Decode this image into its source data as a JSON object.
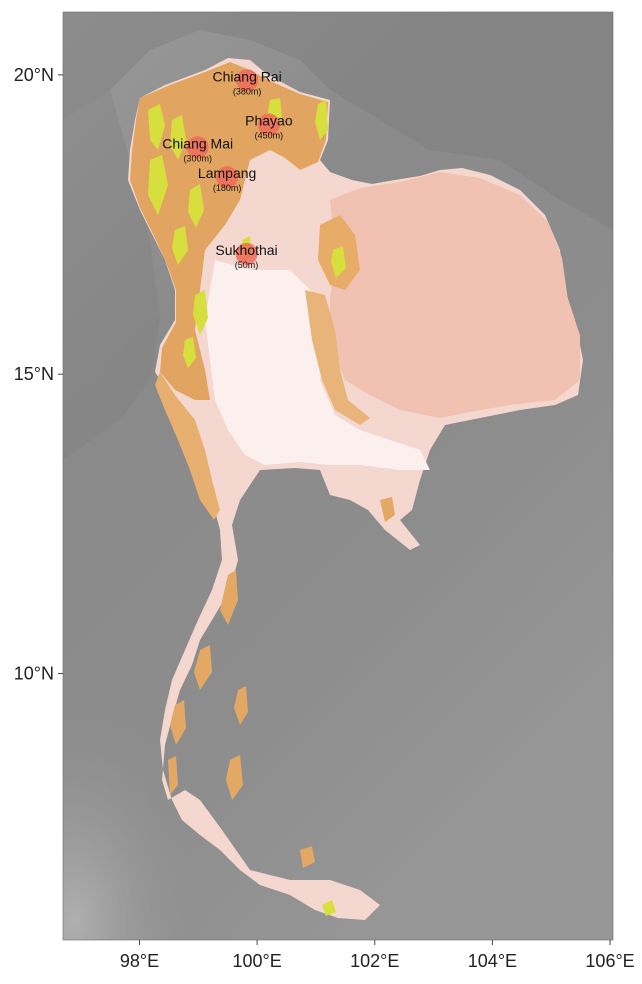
{
  "map": {
    "axes": {
      "x_ticks": [
        {
          "lon": 98,
          "label": "98°E"
        },
        {
          "lon": 100,
          "label": "100°E"
        },
        {
          "lon": 102,
          "label": "102°E"
        },
        {
          "lon": 104,
          "label": "104°E"
        },
        {
          "lon": 106,
          "label": "106°E"
        }
      ],
      "y_ticks": [
        {
          "lat": 20,
          "label": "20°N"
        },
        {
          "lat": 15,
          "label": "15°N"
        },
        {
          "lat": 10,
          "label": "10°N"
        }
      ],
      "lon_range": [
        96.7,
        106.05
      ],
      "lat_range": [
        5.55,
        21.05
      ]
    },
    "colors": {
      "background_relief": "#8c8c8c",
      "lowland": "#f6dcd6",
      "plateau": "#efb49f",
      "highland": "#e3a35f",
      "peak": "#d4df3c",
      "city_marker": "#ef6a5a"
    },
    "cities": [
      {
        "name": "Chiang Rai",
        "elevation": "(380m)",
        "lon": 99.83,
        "lat": 19.91
      },
      {
        "name": "Phayao",
        "elevation": "(450m)",
        "lon": 100.2,
        "lat": 19.17
      },
      {
        "name": "Chiang Mai",
        "elevation": "(300m)",
        "lon": 98.99,
        "lat": 18.79
      },
      {
        "name": "Lampang",
        "elevation": "(180m)",
        "lon": 99.49,
        "lat": 18.29
      },
      {
        "name": "Sukhothai",
        "elevation": "(50m)",
        "lon": 99.82,
        "lat": 17.01
      }
    ]
  }
}
